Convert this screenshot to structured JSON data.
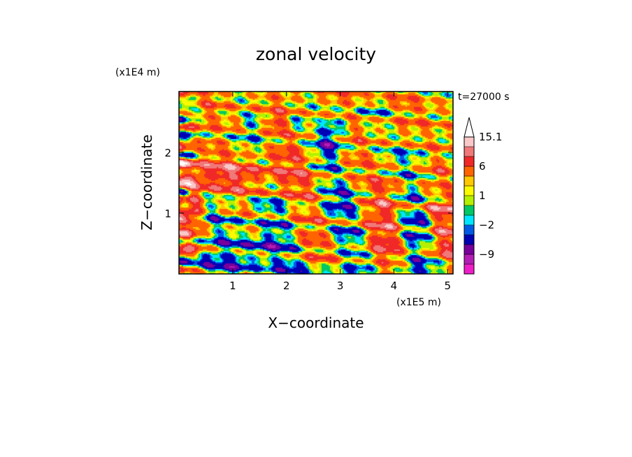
{
  "chart_data": {
    "type": "heatmap",
    "title": "zonal velocity",
    "xlabel": "X−coordinate",
    "ylabel": "Z−coordinate",
    "x_unit": "(x1E5 m)",
    "y_unit": "(x1E4 m)",
    "time_label": "t=27000 s",
    "xlim": [
      0.0,
      5.1
    ],
    "ylim": [
      0.0,
      3.0
    ],
    "x_ticks": [
      {
        "value": 1,
        "label": "1"
      },
      {
        "value": 2,
        "label": "2"
      },
      {
        "value": 3,
        "label": "3"
      },
      {
        "value": 4,
        "label": "4"
      },
      {
        "value": 5,
        "label": "5"
      }
    ],
    "y_ticks": [
      {
        "value": 1,
        "label": "1"
      },
      {
        "value": 2,
        "label": "2"
      }
    ],
    "colorbar": {
      "levels": [
        -15,
        -12,
        -9,
        -6,
        -3,
        -2,
        -1,
        0,
        1,
        2,
        3,
        6,
        9,
        12,
        15.1
      ],
      "colors": [
        "#f01ec8",
        "#b41eb4",
        "#78009b",
        "#0000b4",
        "#005ae6",
        "#00e6ff",
        "#00c864",
        "#b4f000",
        "#fafa00",
        "#ffc800",
        "#ff6400",
        "#f02828",
        "#f07878",
        "#fac8c8"
      ],
      "labels": [
        {
          "value": -9,
          "text": "−9"
        },
        {
          "value": -2,
          "text": "−2"
        },
        {
          "value": 1,
          "text": "1"
        },
        {
          "value": 6,
          "text": "6"
        },
        {
          "value": 15.1,
          "text": "15.1"
        }
      ],
      "extend": "max"
    },
    "grid": false
  }
}
